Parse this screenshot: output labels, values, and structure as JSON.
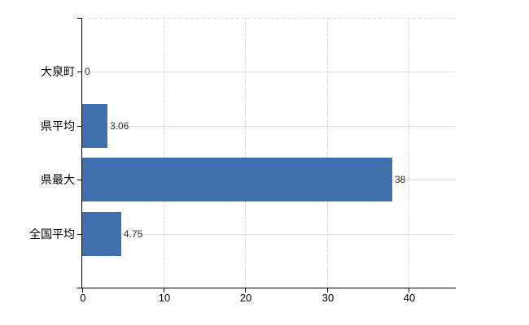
{
  "chart_data": {
    "type": "bar",
    "orientation": "horizontal",
    "title": "",
    "xlabel": "",
    "ylabel": "",
    "categories": [
      "大泉町",
      "県平均",
      "県最大",
      "全国平均"
    ],
    "values": [
      0,
      3.06,
      38,
      4.75
    ],
    "value_labels": [
      "0",
      "3.06",
      "38",
      "4.75"
    ],
    "x_ticks": [
      0,
      10,
      20,
      30,
      40
    ],
    "x_tick_labels": [
      "0",
      "10",
      "20",
      "30",
      "40"
    ],
    "xlim": [
      0,
      45.7
    ],
    "grid": "on",
    "legend": "none",
    "bar_color": "#3f6fad",
    "h_grid_color": "#dbe1da",
    "v_grid_color": "#d7d7dc",
    "axis_color": "#000000",
    "value_label_color": "#2e2e2e",
    "tick_label_color": "#000000"
  }
}
